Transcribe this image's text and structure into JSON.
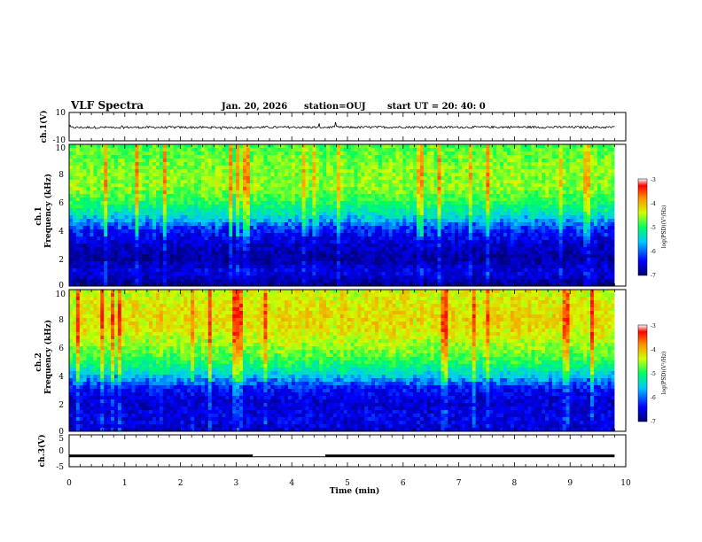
{
  "header": {
    "title": "VLF Spectra",
    "date": "Jan. 20, 2026",
    "station": "station=OUJ",
    "start": "start  UT =   20: 40: 0"
  },
  "chart_data": [
    {
      "type": "line",
      "panel": "ch1-waveform",
      "ylabel": "ch.1(V)",
      "ylim": [
        -10,
        10
      ],
      "yticks": [
        "10",
        "-10"
      ],
      "x": [
        0,
        1,
        2,
        3,
        4,
        5,
        6,
        7,
        8,
        9,
        9.8
      ],
      "y": [
        -0.6,
        -0.5,
        -0.5,
        -0.6,
        -0.4,
        -0.5,
        -0.3,
        -0.4,
        -0.3,
        -0.4,
        -0.4
      ],
      "xlim": [
        0,
        10
      ]
    },
    {
      "type": "heatmap",
      "panel": "ch1-spectrogram",
      "ylabel_line1": "ch.1",
      "ylabel_line2": "Frequency  (kHz)",
      "yticks": [
        "0",
        "2",
        "4",
        "6",
        "8",
        "10"
      ],
      "ylim": [
        0,
        10
      ],
      "xlim": [
        0,
        10
      ],
      "data_end_min": 9.8,
      "colorbar_label": "log(PSD)(V²/Hz)",
      "colorbar_ticks": [
        "-3",
        "-4",
        "-5",
        "-6",
        "-7"
      ],
      "level_by_freq_khz": [
        [
          0,
          -6.9
        ],
        [
          1,
          -6.5
        ],
        [
          2,
          -6.8
        ],
        [
          3,
          -6.6
        ],
        [
          4,
          -6.3
        ],
        [
          5,
          -5.6
        ],
        [
          6,
          -5.1
        ],
        [
          7,
          -4.8
        ],
        [
          8,
          -4.8
        ],
        [
          9,
          -4.9
        ],
        [
          10,
          -5.0
        ]
      ]
    },
    {
      "type": "heatmap",
      "panel": "ch2-spectrogram",
      "ylabel_line1": "ch.2",
      "ylabel_line2": "Frequency  (kHz)",
      "yticks": [
        "0",
        "2",
        "4",
        "6",
        "8",
        "10"
      ],
      "ylim": [
        0,
        10
      ],
      "xlim": [
        0,
        10
      ],
      "data_end_min": 9.8,
      "colorbar_label": "log(PSD)(V²/Hz)",
      "colorbar_ticks": [
        "-3",
        "-4",
        "-5",
        "-6",
        "-7"
      ],
      "level_by_freq_khz": [
        [
          0,
          -6.6
        ],
        [
          1,
          -6.5
        ],
        [
          2,
          -6.6
        ],
        [
          3,
          -6.4
        ],
        [
          4,
          -5.7
        ],
        [
          5,
          -5.1
        ],
        [
          6,
          -4.8
        ],
        [
          7,
          -4.5
        ],
        [
          8,
          -4.4
        ],
        [
          9,
          -4.5
        ],
        [
          10,
          -4.6
        ]
      ]
    },
    {
      "type": "line",
      "panel": "ch3-waveform",
      "ylabel": "ch.3(V)",
      "ylim": [
        -5,
        5
      ],
      "yticks": [
        "5",
        "0",
        "-5"
      ],
      "x": [
        0,
        3.3,
        4.6,
        9.8
      ],
      "y": [
        -1.6,
        -1.6,
        -1.6,
        -1.6
      ],
      "gap": [
        3.3,
        4.6
      ],
      "xlim": [
        0,
        10
      ],
      "xticks": [
        "0",
        "1",
        "2",
        "3",
        "4",
        "5",
        "6",
        "7",
        "8",
        "9",
        "10"
      ],
      "xlabel": "Time  (min)"
    }
  ]
}
